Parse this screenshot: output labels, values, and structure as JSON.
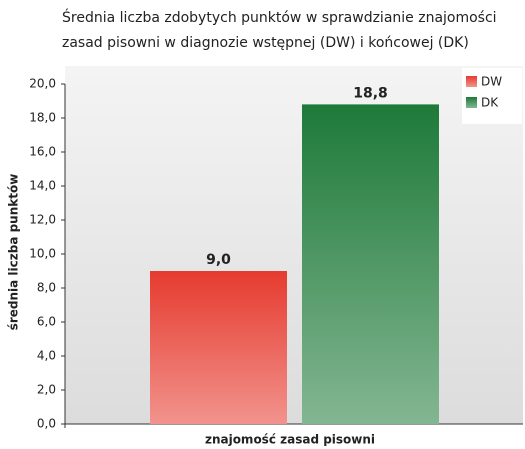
{
  "chart_data": {
    "type": "bar",
    "title": [
      "Średnia liczba zdobytych punktów w sprawdzianie znajomości",
      "zasad pisowni w diagnozie wstępnej (DW) i końcowej (DK)"
    ],
    "ylabel": "średnia liczba punktów",
    "xlabel": "znajomość zasad pisowni",
    "categories": [
      null
    ],
    "series": [
      {
        "name": "DW",
        "color": "#e63b2f",
        "values": [
          9.0
        ],
        "value_labels": [
          "9,0"
        ]
      },
      {
        "name": "DK",
        "color": "#1e7a39",
        "values": [
          18.8
        ],
        "value_labels": [
          "18,8"
        ]
      }
    ],
    "ylim": [
      0,
      20
    ],
    "yticks": [
      {
        "value": 0,
        "label": "0,0"
      },
      {
        "value": 2,
        "label": "2,0"
      },
      {
        "value": 4,
        "label": "4,0"
      },
      {
        "value": 6,
        "label": "6,0"
      },
      {
        "value": 8,
        "label": "8,0"
      },
      {
        "value": 10,
        "label": "10,0"
      },
      {
        "value": 12,
        "label": "12,0"
      },
      {
        "value": 14,
        "label": "14,0"
      },
      {
        "value": 16,
        "label": "16,0"
      },
      {
        "value": 18,
        "label": "18,0"
      },
      {
        "value": 20,
        "label": "20,0"
      }
    ],
    "legend": "top-right"
  }
}
